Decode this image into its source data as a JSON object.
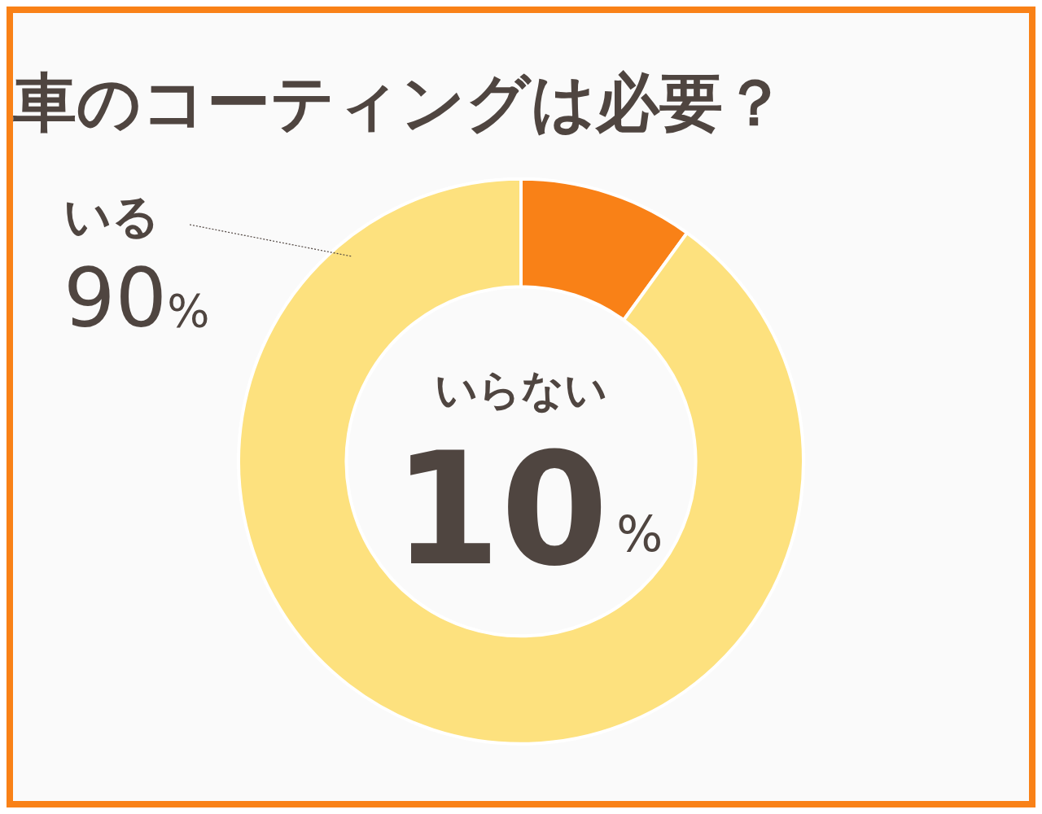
{
  "chart_data": {
    "type": "donut",
    "title": "車のコーティングは必要？",
    "categories": [
      "いらない",
      "いる"
    ],
    "values": [
      10,
      90
    ],
    "colors": [
      "#f98117",
      "#fde17e"
    ],
    "value_labels": [
      "10%",
      "90%"
    ],
    "legend": false
  }
}
